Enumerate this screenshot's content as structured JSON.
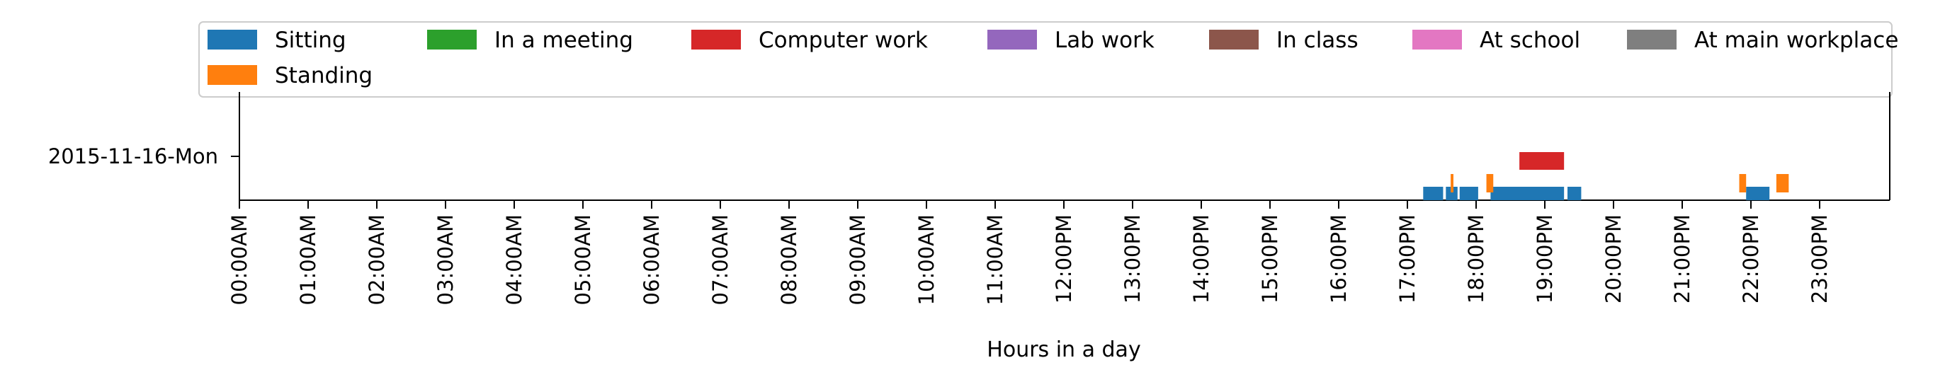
{
  "chart_data": {
    "type": "timeline",
    "xlabel": "Hours in a day",
    "x_range_hours": [
      0,
      24
    ],
    "x_ticks": [
      "00:00AM",
      "01:00AM",
      "02:00AM",
      "03:00AM",
      "04:00AM",
      "05:00AM",
      "06:00AM",
      "07:00AM",
      "08:00AM",
      "09:00AM",
      "10:00AM",
      "11:00AM",
      "12:00PM",
      "13:00PM",
      "14:00PM",
      "15:00PM",
      "16:00PM",
      "17:00PM",
      "18:00PM",
      "19:00PM",
      "20:00PM",
      "21:00PM",
      "22:00PM",
      "23:00PM"
    ],
    "y_categories": [
      "2015-11-16-Mon"
    ],
    "legend_position": "top",
    "legend": [
      {
        "name": "Sitting",
        "color": "#1f77b4"
      },
      {
        "name": "In a meeting",
        "color": "#2ca02c"
      },
      {
        "name": "Computer work",
        "color": "#d62728"
      },
      {
        "name": "Lab work",
        "color": "#9467bd"
      },
      {
        "name": "In class",
        "color": "#8c564b"
      },
      {
        "name": "At school",
        "color": "#e377c2"
      },
      {
        "name": "At main workplace",
        "color": "#7f7f7f"
      },
      {
        "name": "Standing",
        "color": "#ff7f0e"
      }
    ],
    "series": [
      {
        "name": "Sitting",
        "color": "#1f77b4",
        "lane": 0,
        "intervals": [
          [
            17.23,
            17.52
          ],
          [
            17.56,
            17.73
          ],
          [
            17.76,
            18.03
          ],
          [
            18.21,
            19.28
          ],
          [
            19.33,
            19.53
          ],
          [
            21.93,
            22.27
          ]
        ]
      },
      {
        "name": "Standing",
        "color": "#ff7f0e",
        "lane": 1,
        "intervals": [
          [
            17.63,
            17.67
          ],
          [
            18.15,
            18.25
          ],
          [
            21.83,
            21.93
          ],
          [
            22.37,
            22.55
          ]
        ]
      },
      {
        "name": "Computer work",
        "color": "#d62728",
        "lane": 2,
        "intervals": [
          [
            18.63,
            19.28
          ]
        ]
      }
    ]
  }
}
